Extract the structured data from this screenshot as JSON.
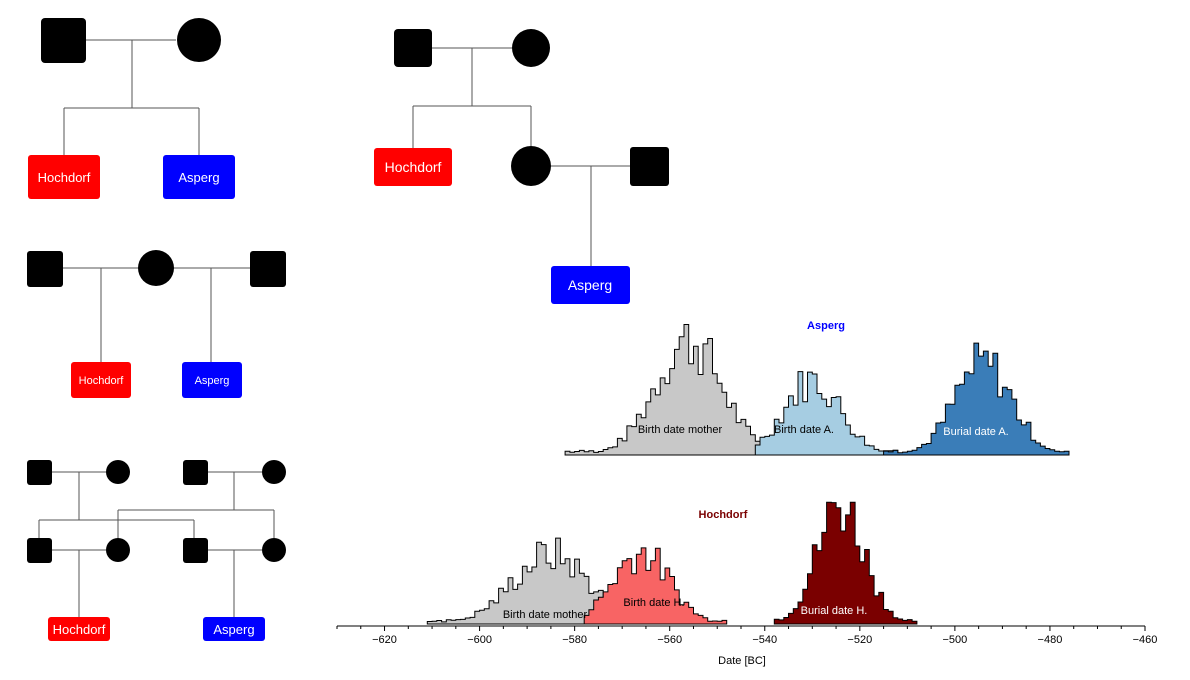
{
  "pedigrees": {
    "top_left": {
      "left_label": "Hochdorf",
      "right_label": "Asperg"
    },
    "mid_left": {
      "left_label": "Hochdorf",
      "right_label": "Asperg"
    },
    "bottom_left": {
      "left_label": "Hochdorf",
      "right_label": "Asperg"
    },
    "big": {
      "left_label": "Hochdorf",
      "right_label": "Asperg"
    }
  },
  "colors": {
    "hochdorf": "#ff0000",
    "asperg": "#0000ff",
    "grey": "#c8c8c8",
    "light_blue": "#a6cde2",
    "blue": "#3a7db8",
    "salmon": "#f86464",
    "dark_red": "#7a0000",
    "asperg_title": "#0000ff",
    "hochdorf_title": "#7a0000"
  },
  "chart_data": [
    {
      "type": "area",
      "title": "Asperg",
      "series": [
        {
          "name": "Birth date mother",
          "center": -556,
          "spread": 7,
          "range": [
            -582,
            -540
          ]
        },
        {
          "name": "Birth date A.",
          "center": -530,
          "spread": 6,
          "range": [
            -542,
            -512
          ]
        },
        {
          "name": "Burial date A.",
          "center": -494,
          "spread": 6,
          "range": [
            -515,
            -476
          ]
        }
      ]
    },
    {
      "type": "area",
      "title": "Hochdorf",
      "xlabel": "Date [BC]",
      "xlim": [
        -630,
        -460
      ],
      "xticks": [
        -620,
        -600,
        -580,
        -560,
        -540,
        -520,
        -500,
        -480,
        -460
      ],
      "series": [
        {
          "name": "Birth date mother",
          "center": -585,
          "spread": 8,
          "range": [
            -611,
            -570
          ]
        },
        {
          "name": "Birth date H.",
          "center": -566,
          "spread": 6,
          "range": [
            -578,
            -548
          ]
        },
        {
          "name": "Burial date H.",
          "center": -524,
          "spread": 5,
          "range": [
            -538,
            -508
          ]
        }
      ]
    }
  ]
}
